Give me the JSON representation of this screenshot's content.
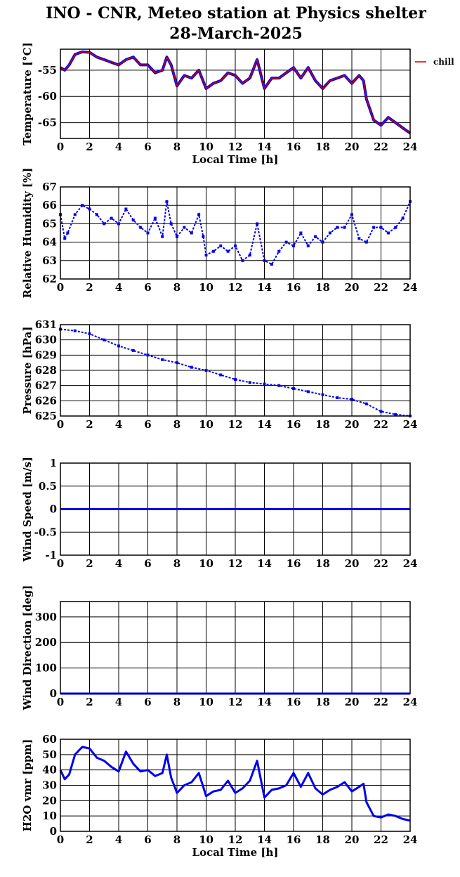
{
  "figure": {
    "title_line1": "INO - CNR, Meteo station at Physics shelter",
    "title_line2": "28-March-2025"
  },
  "chart_data": [
    {
      "type": "line",
      "ylabel": "Temperature [°C]",
      "xlabel": "Local Time [h]",
      "xlim": [
        0,
        24
      ],
      "ylim": [
        -68,
        -51
      ],
      "yticks": [
        -55,
        -60,
        -65
      ],
      "xticks": [
        0,
        2,
        4,
        6,
        8,
        10,
        12,
        14,
        16,
        18,
        20,
        22,
        24
      ],
      "grid": true,
      "legend": "right-outside",
      "series": [
        {
          "name": "chill",
          "color": "#cc0000",
          "outline": "#0000ee",
          "x": [
            0,
            0.3,
            0.6,
            1.0,
            1.5,
            2.0,
            2.5,
            3.0,
            3.5,
            4.0,
            4.5,
            5.0,
            5.5,
            6.0,
            6.5,
            7.0,
            7.3,
            7.6,
            8.0,
            8.5,
            9.0,
            9.5,
            10.0,
            10.5,
            11.0,
            11.5,
            12.0,
            12.5,
            13.0,
            13.5,
            14.0,
            14.5,
            15.0,
            15.5,
            16.0,
            16.5,
            17.0,
            17.5,
            18.0,
            18.5,
            19.0,
            19.5,
            20.0,
            20.5,
            20.8,
            21.0,
            21.5,
            22.0,
            22.5,
            23.0,
            23.5,
            24.0
          ],
          "y": [
            -54.5,
            -55.0,
            -54.0,
            -52.0,
            -51.5,
            -51.6,
            -52.5,
            -53.0,
            -53.5,
            -54.0,
            -53.0,
            -52.5,
            -54.0,
            -54.0,
            -55.5,
            -55.0,
            -52.5,
            -54.0,
            -58.0,
            -56.0,
            -56.5,
            -55.0,
            -58.5,
            -57.5,
            -57.0,
            -55.5,
            -56.0,
            -57.5,
            -56.5,
            -53.0,
            -58.5,
            -56.5,
            -56.5,
            -55.5,
            -54.5,
            -56.5,
            -54.5,
            -57.0,
            -58.5,
            -57.0,
            -56.5,
            -56.0,
            -57.5,
            -56.0,
            -57.0,
            -60.5,
            -64.5,
            -65.5,
            -64.0,
            -65.0,
            -66.0,
            -67.0
          ]
        }
      ]
    },
    {
      "type": "scatter",
      "ylabel": "Relative Humidity [%]",
      "xlabel": "",
      "xlim": [
        0,
        24
      ],
      "ylim": [
        62,
        67
      ],
      "yticks": [
        62,
        63,
        64,
        65,
        66,
        67
      ],
      "xticks": [
        0,
        2,
        4,
        6,
        8,
        10,
        12,
        14,
        16,
        18,
        20,
        22,
        24
      ],
      "grid": true,
      "series": [
        {
          "name": "",
          "color": "#0000ee",
          "x": [
            0,
            0.3,
            0.5,
            1.0,
            1.5,
            2.0,
            2.5,
            3.0,
            3.5,
            4.0,
            4.5,
            5.0,
            5.5,
            6.0,
            6.5,
            7.0,
            7.3,
            7.6,
            8.0,
            8.5,
            9.0,
            9.5,
            9.8,
            10.0,
            10.5,
            11.0,
            11.5,
            12.0,
            12.5,
            13.0,
            13.5,
            14.0,
            14.5,
            15.0,
            15.5,
            16.0,
            16.5,
            17.0,
            17.5,
            18.0,
            18.5,
            19.0,
            19.5,
            20.0,
            20.5,
            21.0,
            21.5,
            22.0,
            22.5,
            23.0,
            23.5,
            24.0
          ],
          "y": [
            65.5,
            64.2,
            64.5,
            65.5,
            66.0,
            65.8,
            65.5,
            65.0,
            65.3,
            65.0,
            65.8,
            65.2,
            64.8,
            64.5,
            65.3,
            64.3,
            66.2,
            65.0,
            64.3,
            64.8,
            64.5,
            65.5,
            64.3,
            63.3,
            63.5,
            63.8,
            63.5,
            63.8,
            63.0,
            63.3,
            65.0,
            63.0,
            62.8,
            63.5,
            64.0,
            63.8,
            64.5,
            63.8,
            64.3,
            64.0,
            64.5,
            64.8,
            64.8,
            65.5,
            64.2,
            64.0,
            64.8,
            64.8,
            64.5,
            64.8,
            65.3,
            66.2
          ]
        }
      ]
    },
    {
      "type": "scatter",
      "ylabel": "Pressure [hPa]",
      "xlabel": "",
      "xlim": [
        0,
        24
      ],
      "ylim": [
        625,
        631
      ],
      "yticks": [
        625,
        626,
        627,
        628,
        629,
        630,
        631
      ],
      "xticks": [
        0,
        2,
        4,
        6,
        8,
        10,
        12,
        14,
        16,
        18,
        20,
        22,
        24
      ],
      "grid": true,
      "series": [
        {
          "name": "",
          "color": "#0000ee",
          "x": [
            0,
            1,
            2,
            3,
            4,
            5,
            6,
            7,
            8,
            9,
            10,
            11,
            12,
            13,
            14,
            15,
            16,
            17,
            18,
            19,
            20,
            21,
            22,
            23,
            24
          ],
          "y": [
            630.7,
            630.6,
            630.4,
            630.0,
            629.6,
            629.3,
            629.0,
            628.7,
            628.5,
            628.2,
            628.0,
            627.7,
            627.4,
            627.2,
            627.1,
            627.0,
            626.8,
            626.6,
            626.4,
            626.2,
            626.1,
            625.8,
            625.3,
            625.1,
            625.0
          ]
        }
      ]
    },
    {
      "type": "line",
      "ylabel": "Wind Speed [m/s]",
      "xlabel": "",
      "xlim": [
        0,
        24
      ],
      "ylim": [
        -1,
        1
      ],
      "yticks": [
        -1,
        -0.5,
        0,
        0.5,
        1
      ],
      "xticks": [
        0,
        2,
        4,
        6,
        8,
        10,
        12,
        14,
        16,
        18,
        20,
        22,
        24
      ],
      "grid": true,
      "series": [
        {
          "name": "",
          "color": "#0000ee",
          "x": [
            0,
            24
          ],
          "y": [
            0,
            0
          ]
        }
      ]
    },
    {
      "type": "line",
      "ylabel": "Wind Direction [deg]",
      "xlabel": "",
      "xlim": [
        0,
        24
      ],
      "ylim": [
        0,
        360
      ],
      "yticks": [
        0,
        100,
        200,
        300
      ],
      "xticks": [
        0,
        2,
        4,
        6,
        8,
        10,
        12,
        14,
        16,
        18,
        20,
        22,
        24
      ],
      "grid": true,
      "series": [
        {
          "name": "",
          "color": "#0000ee",
          "x": [
            0,
            24
          ],
          "y": [
            0,
            0
          ]
        }
      ]
    },
    {
      "type": "line",
      "ylabel": "H2O vmr [ppm]",
      "xlabel": "Local Time [h]",
      "xlim": [
        0,
        24
      ],
      "ylim": [
        0,
        60
      ],
      "yticks": [
        0,
        10,
        20,
        30,
        40,
        50,
        60
      ],
      "xticks": [
        0,
        2,
        4,
        6,
        8,
        10,
        12,
        14,
        16,
        18,
        20,
        22,
        24
      ],
      "grid": true,
      "series": [
        {
          "name": "",
          "color": "#0000ee",
          "x": [
            0,
            0.3,
            0.6,
            1.0,
            1.5,
            2.0,
            2.5,
            3.0,
            3.5,
            4.0,
            4.5,
            5.0,
            5.5,
            6.0,
            6.5,
            7.0,
            7.3,
            7.6,
            8.0,
            8.5,
            9.0,
            9.5,
            10.0,
            10.5,
            11.0,
            11.5,
            12.0,
            12.5,
            13.0,
            13.5,
            14.0,
            14.5,
            15.0,
            15.5,
            16.0,
            16.5,
            17.0,
            17.5,
            18.0,
            18.5,
            19.0,
            19.5,
            20.0,
            20.5,
            20.8,
            21.0,
            21.5,
            22.0,
            22.5,
            23.0,
            23.5,
            24.0
          ],
          "y": [
            40,
            34,
            37,
            50,
            55,
            54,
            48,
            46,
            42,
            39,
            52,
            44,
            39,
            40,
            36,
            38,
            50,
            35,
            25,
            30,
            32,
            38,
            23,
            26,
            27,
            33,
            25,
            28,
            33,
            46,
            22,
            27,
            28,
            30,
            38,
            29,
            38,
            28,
            24,
            27,
            29,
            32,
            26,
            29,
            31,
            19,
            10,
            9,
            11,
            10,
            8,
            7
          ]
        }
      ]
    }
  ]
}
